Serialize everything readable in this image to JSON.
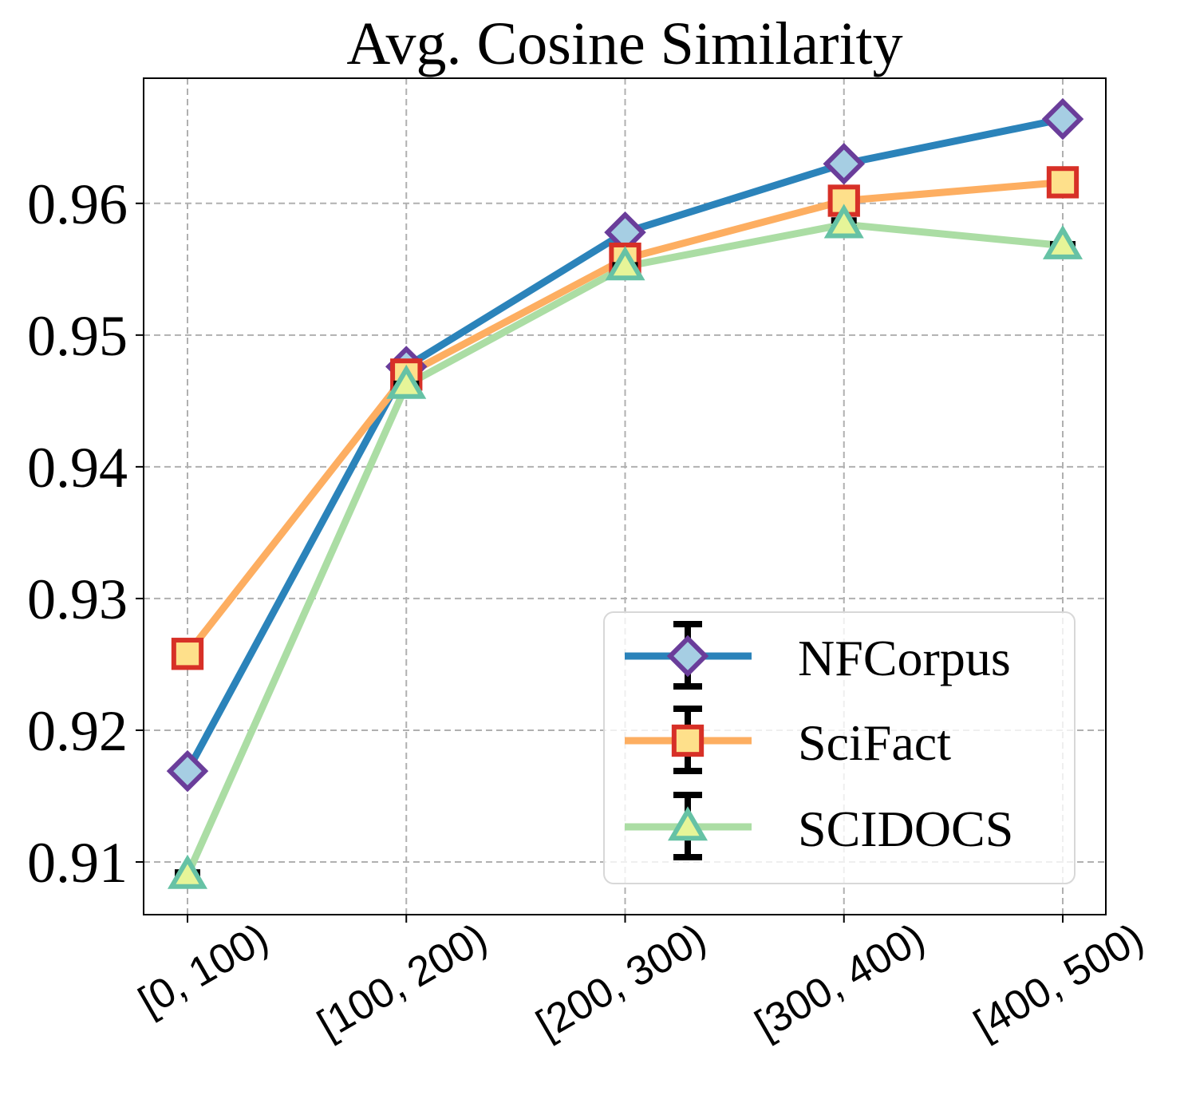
{
  "chart_data": {
    "type": "line",
    "title": "Avg. Cosine Similarity",
    "xlabel": "",
    "ylabel": "",
    "categories": [
      "[0, 100)",
      "[100, 200)",
      "[200, 300)",
      "[300, 400)",
      "[400, 500)"
    ],
    "ylim": [
      0.906,
      0.9695
    ],
    "yticks": [
      0.91,
      0.92,
      0.93,
      0.94,
      0.95,
      0.96
    ],
    "ytick_labels": [
      "0.91",
      "0.92",
      "0.93",
      "0.94",
      "0.95",
      "0.96"
    ],
    "grid": true,
    "legend_position": "lower-right",
    "series": [
      {
        "name": "NFCorpus",
        "values": [
          0.9169,
          0.9476,
          0.9578,
          0.963,
          0.9664
        ],
        "errors": [
          0.0001,
          0.0001,
          0.0001,
          0.0001,
          0.0001
        ],
        "line_color": "#2b83ba",
        "marker": "diamond",
        "marker_fill": "#a6cee3",
        "marker_edge": "#6a3d9a"
      },
      {
        "name": "SciFact",
        "values": [
          0.9258,
          0.947,
          0.9558,
          0.9602,
          0.9616
        ],
        "errors": [
          0.0001,
          0.0001,
          0.0001,
          0.0001,
          0.0001
        ],
        "line_color": "#fdae61",
        "marker": "square",
        "marker_fill": "#fee08b",
        "marker_edge": "#d73027"
      },
      {
        "name": "SCIDOCS",
        "values": [
          0.909,
          0.9462,
          0.9552,
          0.9584,
          0.9568
        ],
        "errors": [
          0.0002,
          0.0001,
          0.0001,
          0.0003,
          0.0001
        ],
        "line_color": "#abdda4",
        "marker": "triangle",
        "marker_fill": "#e6f598",
        "marker_edge": "#66c2a5"
      }
    ]
  }
}
